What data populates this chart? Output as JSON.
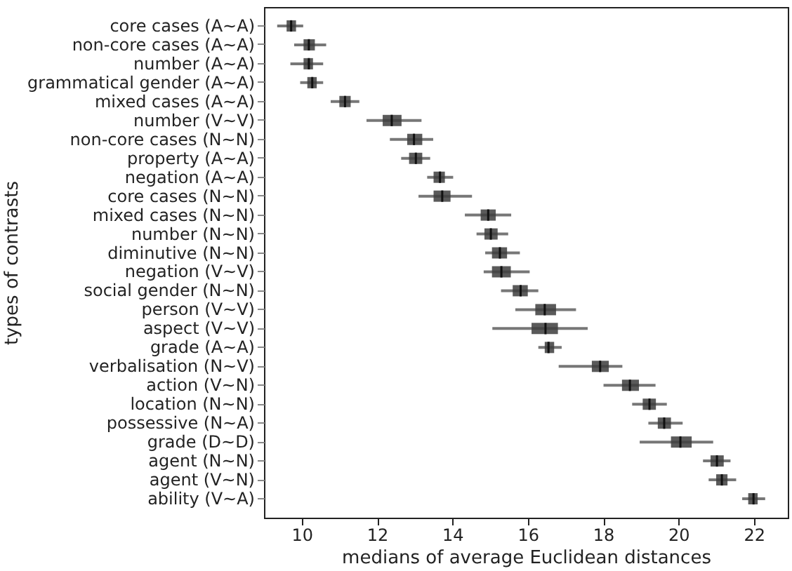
{
  "chart_data": {
    "type": "box",
    "xlabel": "medians of average Euclidean distances",
    "ylabel": "types of contrasts",
    "orientation": "horizontal",
    "categories": [
      "core cases (A~A)",
      "non-core cases (A~A)",
      "number (A~A)",
      "grammatical gender (A~A)",
      "mixed cases (A~A)",
      "number (V~V)",
      "non-core cases (N~N)",
      "property (A~A)",
      "negation (A~A)",
      "core cases (N~N)",
      "mixed cases (N~N)",
      "number (N~N)",
      "diminutive (N~N)",
      "negation (V~V)",
      "social gender (N~N)",
      "person (V~V)",
      "aspect (V~V)",
      "grade (A~A)",
      "verbalisation (N~V)",
      "action (V~N)",
      "location (N~N)",
      "possessive (N~A)",
      "grade (D~D)",
      "agent (N~N)",
      "agent (V~N)",
      "ability (V~A)"
    ],
    "boxes": [
      {
        "low": 9.35,
        "q1": 9.6,
        "median": 9.72,
        "q3": 9.85,
        "high": 10.04
      },
      {
        "low": 9.8,
        "q1": 10.05,
        "median": 10.19,
        "q3": 10.35,
        "high": 10.65
      },
      {
        "low": 9.7,
        "q1": 10.05,
        "median": 10.19,
        "q3": 10.3,
        "high": 10.57
      },
      {
        "low": 9.96,
        "q1": 10.15,
        "median": 10.28,
        "q3": 10.4,
        "high": 10.57
      },
      {
        "low": 10.77,
        "q1": 11.0,
        "median": 11.15,
        "q3": 11.3,
        "high": 11.53
      },
      {
        "low": 11.72,
        "q1": 12.15,
        "median": 12.39,
        "q3": 12.65,
        "high": 13.18
      },
      {
        "low": 12.34,
        "q1": 12.8,
        "median": 12.98,
        "q3": 13.2,
        "high": 13.49
      },
      {
        "low": 12.64,
        "q1": 12.85,
        "median": 13.03,
        "q3": 13.2,
        "high": 13.41
      },
      {
        "low": 13.33,
        "q1": 13.5,
        "median": 13.67,
        "q3": 13.8,
        "high": 14.02
      },
      {
        "low": 13.1,
        "q1": 13.5,
        "median": 13.73,
        "q3": 13.95,
        "high": 14.52
      },
      {
        "low": 14.33,
        "q1": 14.75,
        "median": 14.95,
        "q3": 15.15,
        "high": 15.56
      },
      {
        "low": 14.64,
        "q1": 14.85,
        "median": 15.02,
        "q3": 15.2,
        "high": 15.48
      },
      {
        "low": 14.87,
        "q1": 15.05,
        "median": 15.26,
        "q3": 15.45,
        "high": 15.79
      },
      {
        "low": 14.83,
        "q1": 15.05,
        "median": 15.3,
        "q3": 15.55,
        "high": 16.05
      },
      {
        "low": 15.29,
        "q1": 15.6,
        "median": 15.81,
        "q3": 16.0,
        "high": 16.28
      },
      {
        "low": 15.67,
        "q1": 16.2,
        "median": 16.45,
        "q3": 16.75,
        "high": 17.28
      },
      {
        "low": 15.06,
        "q1": 16.1,
        "median": 16.47,
        "q3": 16.8,
        "high": 17.59
      },
      {
        "low": 16.28,
        "q1": 16.45,
        "median": 16.55,
        "q3": 16.7,
        "high": 16.9
      },
      {
        "low": 16.82,
        "q1": 17.7,
        "median": 17.92,
        "q3": 18.15,
        "high": 18.51
      },
      {
        "low": 18.01,
        "q1": 18.5,
        "median": 18.71,
        "q3": 18.95,
        "high": 19.39
      },
      {
        "low": 18.77,
        "q1": 19.05,
        "median": 19.23,
        "q3": 19.4,
        "high": 19.69
      },
      {
        "low": 19.2,
        "q1": 19.45,
        "median": 19.62,
        "q3": 19.8,
        "high": 20.11
      },
      {
        "low": 18.97,
        "q1": 19.8,
        "median": 20.05,
        "q3": 20.35,
        "high": 20.92
      },
      {
        "low": 20.65,
        "q1": 20.85,
        "median": 21.02,
        "q3": 21.2,
        "high": 21.38
      },
      {
        "low": 20.8,
        "q1": 21.0,
        "median": 21.15,
        "q3": 21.3,
        "high": 21.53
      },
      {
        "low": 21.69,
        "q1": 21.85,
        "median": 21.99,
        "q3": 22.1,
        "high": 22.3
      }
    ],
    "color": "#3d3d3d",
    "xlim": [
      9.0,
      22.9
    ],
    "xticks": [
      10,
      12,
      14,
      16,
      18,
      20,
      22
    ],
    "grid": false
  }
}
